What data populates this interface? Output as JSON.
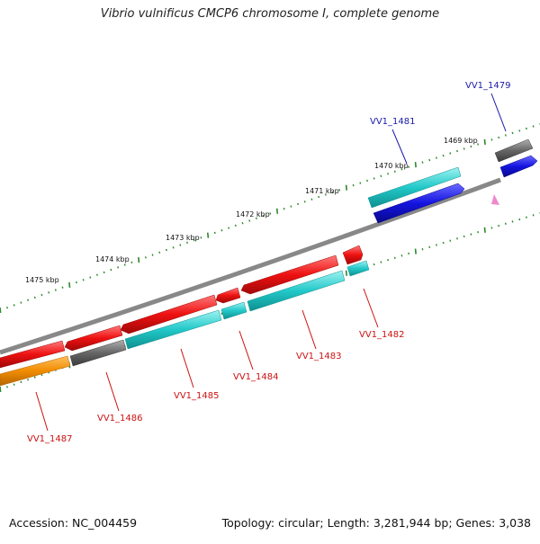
{
  "title": "Vibrio vulnificus CMCP6 chromosome I, complete genome",
  "accession_text": "Accession: NC_004459",
  "topology_text": "Topology: circular; Length: 3,281,944 bp; Genes: 3,038",
  "colors": {
    "backbone": "#888888",
    "tick": "#2a8a2a",
    "forward_label": "#1a1aaa",
    "reverse_label": "#cc1111",
    "cyan": "#22c8c8",
    "blue": "#1414e0",
    "red": "#ee1111",
    "gray": "#666666",
    "orange": "#f08c00",
    "pink": "#ee88cc"
  },
  "kbp_labels": [
    "1469 kbp",
    "1470 kbp",
    "1471 kbp",
    "1472 kbp",
    "1473 kbp",
    "1474 kbp",
    "1475 kbp"
  ],
  "genes": [
    {
      "id": "vv1-1479",
      "label": "VV1_1479",
      "strand": "forward"
    },
    {
      "id": "vv1-1481",
      "label": "VV1_1481",
      "strand": "forward"
    },
    {
      "id": "vv1-1482",
      "label": "VV1_1482",
      "strand": "reverse"
    },
    {
      "id": "vv1-1483",
      "label": "VV1_1483",
      "strand": "reverse"
    },
    {
      "id": "vv1-1484",
      "label": "VV1_1484",
      "strand": "reverse"
    },
    {
      "id": "vv1-1485",
      "label": "VV1_1485",
      "strand": "reverse"
    },
    {
      "id": "vv1-1486",
      "label": "VV1_1486",
      "strand": "reverse"
    },
    {
      "id": "vv1-1487",
      "label": "VV1_1487",
      "strand": "reverse"
    }
  ]
}
